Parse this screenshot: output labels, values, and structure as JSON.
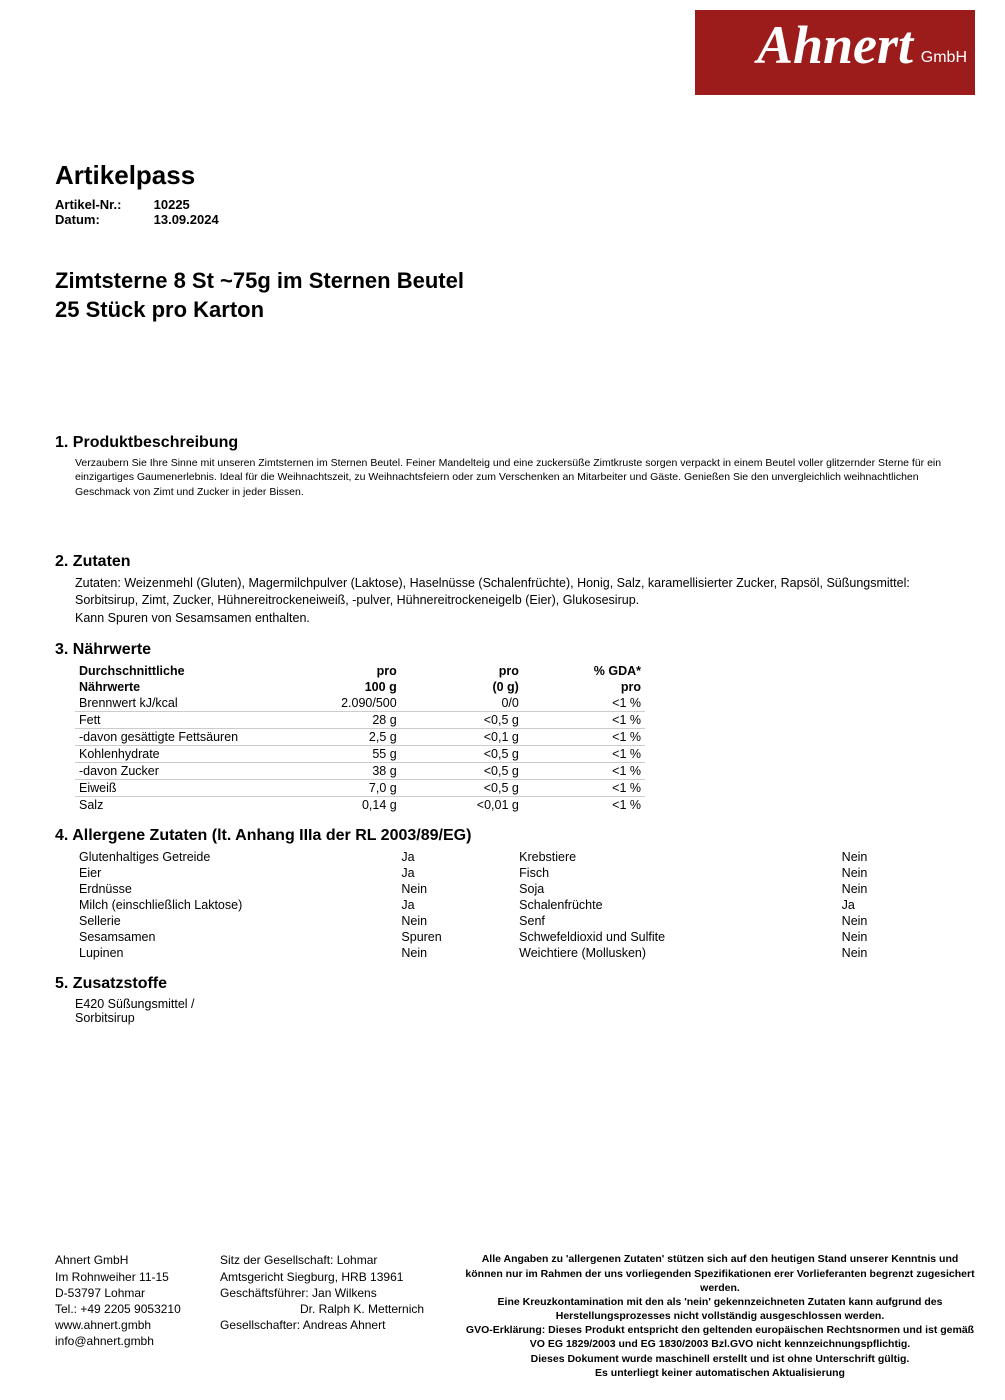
{
  "logo": {
    "name": "Ahnert",
    "suffix": "GmbH",
    "bg_color": "#9c1c1c",
    "text_color": "#ffffff"
  },
  "header": {
    "doc_title": "Artikelpass",
    "artnr_label": "Artikel-Nr.:",
    "artnr_value": "10225",
    "date_label": "Datum:",
    "date_value": "13.09.2024"
  },
  "product": {
    "line1": "Zimtsterne 8 St ~75g im Sternen Beutel",
    "line2": "25 Stück pro Karton"
  },
  "sections": {
    "s1_title": "1. Produktbeschreibung",
    "s1_text": "Verzaubern Sie Ihre Sinne mit unseren Zimtsternen im Sternen Beutel. Feiner Mandelteig und eine zuckersüße Zimtkruste sorgen verpackt in einem Beutel voller glitzernder Sterne für ein einzigartiges Gaumenerlebnis. Ideal für die Weihnachtszeit, zu Weihnachtsfeiern oder zum Verschenken an Mitarbeiter und Gäste. Genießen Sie den unvergleichlich weihnachtlichen Geschmack von Zimt und Zucker in jeder Bissen.",
    "s2_title": "2. Zutaten",
    "s2_text1": "Zutaten: Weizenmehl (Gluten), Magermilchpulver (Laktose), Haselnüsse (Schalenfrüchte), Honig, Salz, karamellisierter Zucker, Rapsöl, Süßungsmittel: Sorbitsirup, Zimt, Zucker, Hühnereitrockeneiweiß, -pulver, Hühnereitrockeneigelb (Eier), Glukosesirup.",
    "s2_text2": "Kann Spuren von Sesamsamen enthalten.",
    "s3_title": "3. Nährwerte",
    "s4_title": "4. Allergene Zutaten (lt. Anhang IIIa der RL 2003/89/EG)",
    "s5_title": "5. Zusatzstoffe",
    "s5_text": "E420 Süßungsmittel / Sorbitsirup"
  },
  "nutrition": {
    "header": {
      "c1a": "Durchschnittliche",
      "c1b": "Nährwerte",
      "c2a": "pro",
      "c2b": "100 g",
      "c3a": "pro",
      "c3b": "(0 g)",
      "c4a": "% GDA*",
      "c4b": "pro"
    },
    "rows": [
      {
        "label": "Brennwert kJ/kcal",
        "v1": "2.090/500",
        "v2": "0/0",
        "v3": "<1 %"
      },
      {
        "label": "Fett",
        "v1": "28 g",
        "v2": "<0,5 g",
        "v3": "<1 %"
      },
      {
        "label": "-davon gesättigte Fettsäuren",
        "v1": "2,5 g",
        "v2": "<0,1 g",
        "v3": "<1 %"
      },
      {
        "label": "Kohlenhydrate",
        "v1": "55 g",
        "v2": "<0,5 g",
        "v3": "<1 %"
      },
      {
        "label": "-davon Zucker",
        "v1": "38 g",
        "v2": "<0,5 g",
        "v3": "<1 %"
      },
      {
        "label": "Eiweiß",
        "v1": "7,0 g",
        "v2": "<0,5 g",
        "v3": "<1 %"
      },
      {
        "label": "Salz",
        "v1": "0,14 g",
        "v2": "<0,01 g",
        "v3": "<1 %"
      }
    ]
  },
  "allergens": {
    "rows": [
      {
        "l1": "Glutenhaltiges Getreide",
        "v1": "Ja",
        "l2": "Krebstiere",
        "v2": "Nein"
      },
      {
        "l1": "Eier",
        "v1": "Ja",
        "l2": "Fisch",
        "v2": "Nein"
      },
      {
        "l1": "Erdnüsse",
        "v1": "Nein",
        "l2": "Soja",
        "v2": "Nein"
      },
      {
        "l1": "Milch (einschließlich Laktose)",
        "v1": "Ja",
        "l2": "Schalenfrüchte",
        "v2": "Ja"
      },
      {
        "l1": "Sellerie",
        "v1": "Nein",
        "l2": "Senf",
        "v2": "Nein"
      },
      {
        "l1": "Sesamsamen",
        "v1": "Spuren",
        "l2": "Schwefeldioxid und Sulfite",
        "v2": "Nein"
      },
      {
        "l1": "Lupinen",
        "v1": "Nein",
        "l2": "Weichtiere (Mollusken)",
        "v2": "Nein"
      }
    ]
  },
  "footer": {
    "col1": [
      "Ahnert GmbH",
      "Im Rohnweiher 11-15",
      "D-53797 Lohmar",
      "Tel.: +49 2205 9053210",
      "www.ahnert.gmbh",
      "info@ahnert.gmbh"
    ],
    "col2": [
      "Sitz der Gesellschaft: Lohmar",
      "Amtsgericht Siegburg, HRB 13961",
      "Geschäftsführer: Jan Wilkens",
      "Dr. Ralph K. Metternich",
      "Gesellschafter: Andreas Ahnert"
    ],
    "col3": [
      "Alle Angaben zu 'allergenen Zutaten' stützen sich auf den heutigen Stand unserer Kenntnis und können nur im Rahmen der uns vorliegenden Spezifikationen erer Vorlieferanten begrenzt zugesichert werden.",
      "Eine Kreuzkontamination mit den als 'nein' gekennzeichneten Zutaten kann aufgrund des Herstellungsprozesses nicht vollständig ausgeschlossen werden.",
      "GVO-Erklärung: Dieses Produkt entspricht den geltenden europäischen Rechtsnormen und ist gemäß VO EG 1829/2003 und EG 1830/2003 Bzl.GVO nicht kennzeichnungspflichtig.",
      "Dieses Dokument wurde maschinell erstellt und ist ohne Unterschrift gültig.",
      "Es unterliegt keiner automatischen Aktualisierung"
    ]
  }
}
